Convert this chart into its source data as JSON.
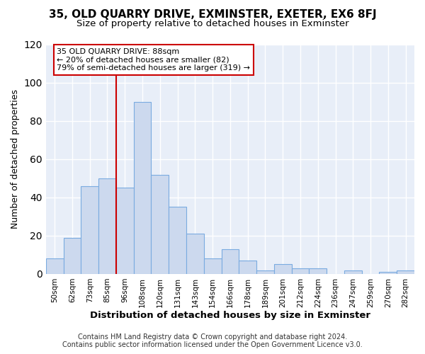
{
  "title": "35, OLD QUARRY DRIVE, EXMINSTER, EXETER, EX6 8FJ",
  "subtitle": "Size of property relative to detached houses in Exminster",
  "xlabel": "Distribution of detached houses by size in Exminster",
  "ylabel": "Number of detached properties",
  "bar_labels": [
    "50sqm",
    "62sqm",
    "73sqm",
    "85sqm",
    "96sqm",
    "108sqm",
    "120sqm",
    "131sqm",
    "143sqm",
    "154sqm",
    "166sqm",
    "178sqm",
    "189sqm",
    "201sqm",
    "212sqm",
    "224sqm",
    "236sqm",
    "247sqm",
    "259sqm",
    "270sqm",
    "282sqm"
  ],
  "bar_values": [
    8,
    19,
    46,
    50,
    45,
    90,
    52,
    35,
    21,
    8,
    13,
    7,
    2,
    5,
    3,
    3,
    0,
    2,
    0,
    1,
    2
  ],
  "bar_color": "#ccd9ee",
  "bar_edge_color": "#7aabe0",
  "ylim": [
    0,
    120
  ],
  "yticks": [
    0,
    20,
    40,
    60,
    80,
    100,
    120
  ],
  "vline_index": 4,
  "vline_color": "#cc0000",
  "annotation_title": "35 OLD QUARRY DRIVE: 88sqm",
  "annotation_line1": "← 20% of detached houses are smaller (82)",
  "annotation_line2": "79% of semi-detached houses are larger (319) →",
  "annotation_box_color": "#ffffff",
  "annotation_box_edge": "#cc0000",
  "footer1": "Contains HM Land Registry data © Crown copyright and database right 2024.",
  "footer2": "Contains public sector information licensed under the Open Government Licence v3.0.",
  "background_color": "#ffffff",
  "plot_bg_color": "#e8eef8",
  "title_fontsize": 11,
  "subtitle_fontsize": 9.5,
  "xlabel_fontsize": 9.5,
  "ylabel_fontsize": 9,
  "footer_fontsize": 7
}
